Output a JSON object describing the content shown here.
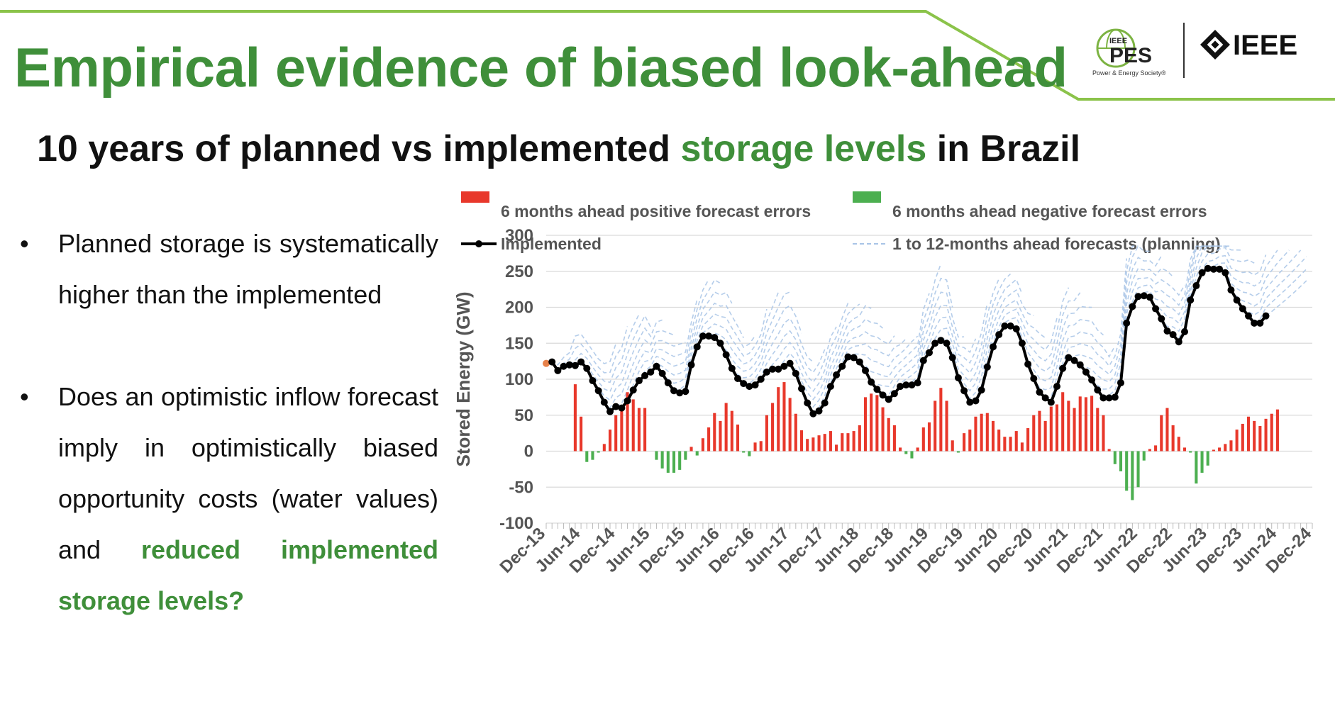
{
  "slide": {
    "title": "Empirical evidence of biased look-ahead",
    "subtitle_prefix": "10 years of planned vs implemented ",
    "subtitle_highlight": "storage levels",
    "subtitle_suffix": " in Brazil",
    "accent_color": "#3f8f3a"
  },
  "logos": {
    "pes_name": "PES",
    "pes_small": "IEEE",
    "pes_caption": "Power & Energy Society®",
    "ieee_name": "IEEE"
  },
  "bullets": [
    {
      "text": "Planned storage is systematically higher than the implemented"
    },
    {
      "text": "Does an optimistic inflow forecast imply in optimistically biased opportunity costs (water values) and ",
      "emphasis": "reduced implemented storage levels?"
    }
  ],
  "chart_data": {
    "type": "bar",
    "ylabel": "Stored Energy (GW)",
    "ylim": [
      -100,
      300
    ],
    "yticks": [
      300,
      250,
      200,
      150,
      100,
      50,
      0,
      -50,
      -100
    ],
    "grid": true,
    "legend_position": "top",
    "x_tick_labels": [
      "Dec-13",
      "Jun-14",
      "Dec-14",
      "Jun-15",
      "Dec-15",
      "Jun-16",
      "Dec-16",
      "Jun-17",
      "Dec-17",
      "Jun-18",
      "Dec-18",
      "Jun-19",
      "Dec-19",
      "Jun-20",
      "Dec-20",
      "Jun-21",
      "Dec-21",
      "Jun-22",
      "Dec-22",
      "Jun-23",
      "Dec-23",
      "Jun-24",
      "Dec-24"
    ],
    "x_months_total": 132,
    "legend": [
      {
        "label": "6 months ahead positive forecast errors",
        "color": "#e8382b",
        "kind": "bar"
      },
      {
        "label": "6 months ahead negative forecast errors",
        "color": "#4caf50",
        "kind": "bar"
      },
      {
        "label": "Implemented",
        "color": "#000000",
        "kind": "line-marker"
      },
      {
        "label": "1 to 12-months ahead forecasts (planning)",
        "color": "#a8c4e6",
        "kind": "dashed"
      }
    ],
    "series": [
      {
        "name": "Implemented",
        "start_month": 0,
        "values": [
          122,
          124,
          112,
          118,
          120,
          119,
          124,
          115,
          98,
          84,
          68,
          55,
          62,
          60,
          70,
          85,
          98,
          105,
          110,
          118,
          108,
          95,
          84,
          81,
          83,
          120,
          145,
          160,
          160,
          158,
          150,
          134,
          115,
          101,
          94,
          90,
          92,
          100,
          110,
          114,
          114,
          118,
          122,
          108,
          87,
          67,
          52,
          56,
          67,
          90,
          106,
          118,
          131,
          130,
          124,
          112,
          96,
          86,
          78,
          72,
          80,
          90,
          92,
          92,
          95,
          126,
          137,
          150,
          154,
          150,
          130,
          102,
          84,
          68,
          70,
          85,
          117,
          145,
          162,
          174,
          174,
          170,
          150,
          121,
          101,
          82,
          74,
          68,
          90,
          115,
          130,
          126,
          120,
          110,
          99,
          85,
          74,
          74,
          75,
          95,
          178,
          201,
          215,
          216,
          214,
          198,
          184,
          167,
          162,
          152,
          166,
          210,
          230,
          248,
          254,
          253,
          253,
          248,
          224,
          210,
          198,
          188,
          178,
          178,
          188
        ]
      },
      {
        "name": "6 months ahead positive forecast errors",
        "start_month": 0,
        "values": [
          0,
          0,
          0,
          0,
          0,
          93,
          48,
          -15,
          -12,
          -2,
          10,
          30,
          50,
          61,
          82,
          72,
          60,
          60,
          0,
          -12,
          -24,
          -30,
          -30,
          -26,
          -12,
          6,
          -6,
          18,
          33,
          53,
          42,
          67,
          56,
          37,
          -2,
          -7,
          12,
          14,
          50,
          67,
          89,
          96,
          74,
          52,
          29,
          17,
          19,
          22,
          24,
          28,
          9,
          25,
          25,
          28,
          36,
          75,
          80,
          78,
          61,
          46,
          36,
          5,
          -4,
          -10,
          5,
          33,
          40,
          70,
          88,
          70,
          15,
          -2,
          25,
          30,
          48,
          52,
          53,
          42,
          30,
          20,
          20,
          28,
          12,
          32,
          50,
          56,
          42,
          62,
          65,
          82,
          70,
          60,
          76,
          75,
          77,
          60,
          50,
          3,
          -18,
          -28,
          -55,
          -68,
          -50,
          -13,
          3,
          8,
          50,
          60,
          36,
          20,
          5,
          -2,
          -45,
          -30,
          -20,
          2,
          5,
          10,
          15,
          30,
          38,
          48,
          42,
          35,
          45,
          52,
          58
        ]
      }
    ],
    "forecast_paths_note": "Many dashed blue lines start from each implemented month and project 1 to 12 months ahead, consistently above the implemented line."
  }
}
